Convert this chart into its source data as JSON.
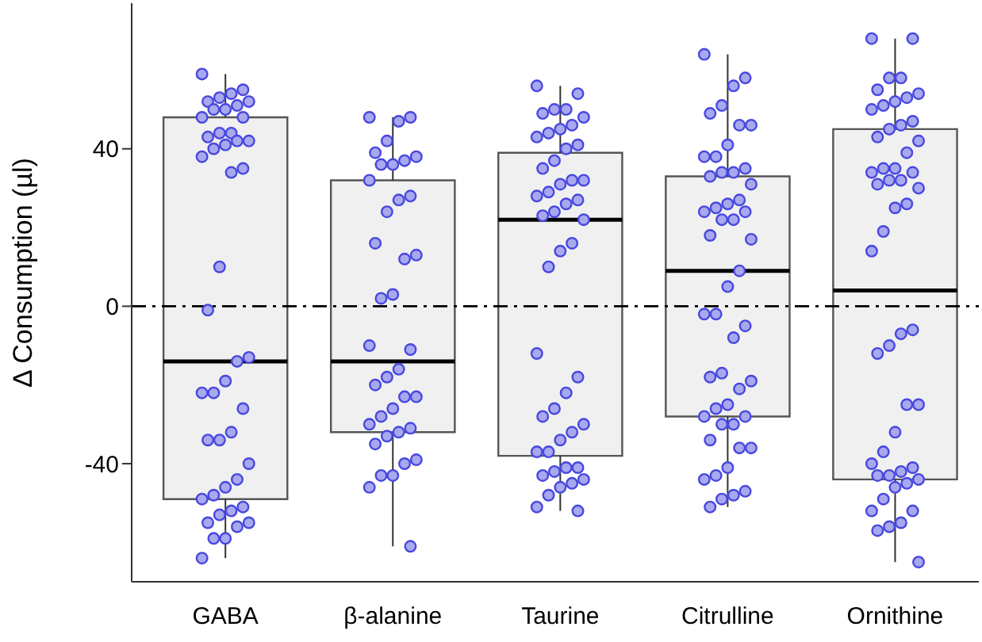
{
  "chart_data": {
    "type": "box",
    "ylabel": "Δ Consumption (µl)",
    "categories": [
      "GABA",
      "β-alanine",
      "Taurine",
      "Citrulline",
      "Ornithine"
    ],
    "boxes": [
      {
        "low": -64,
        "q1": -49,
        "median": -14,
        "q3": 48,
        "high": 59
      },
      {
        "low": -61,
        "q1": -32,
        "median": -14,
        "q3": 32,
        "high": 48
      },
      {
        "low": -52,
        "q1": -38,
        "median": 22,
        "q3": 39,
        "high": 56
      },
      {
        "low": -51,
        "q1": -28,
        "median": 9,
        "q3": 33,
        "high": 64
      },
      {
        "low": -65,
        "q1": -44,
        "median": 4,
        "q3": 45,
        "high": 68
      }
    ],
    "series": [
      {
        "type": "scatter",
        "color": "#4848e0",
        "x": [
          "GABA",
          "GABA",
          "GABA",
          "GABA",
          "GABA",
          "GABA",
          "GABA",
          "GABA",
          "GABA",
          "GABA",
          "GABA",
          "GABA",
          "GABA",
          "GABA",
          "GABA",
          "GABA",
          "GABA",
          "GABA",
          "GABA",
          "GABA",
          "GABA",
          "GABA",
          "GABA",
          "GABA",
          "GABA",
          "GABA",
          "GABA",
          "GABA",
          "GABA",
          "GABA",
          "GABA",
          "GABA",
          "GABA",
          "GABA",
          "GABA",
          "GABA",
          "GABA",
          "GABA",
          "GABA",
          "GABA",
          "GABA",
          "GABA",
          "GABA",
          "GABA",
          "GABA",
          "GABA"
        ],
        "values": [
          59,
          55,
          54,
          53,
          52,
          52,
          51,
          50,
          50,
          48,
          48,
          44,
          44,
          43,
          42,
          42,
          41,
          40,
          38,
          35,
          34,
          10,
          -1,
          -13,
          -14,
          -19,
          -22,
          -22,
          -26,
          -32,
          -34,
          -34,
          -40,
          -44,
          -46,
          -48,
          -49,
          -51,
          -52,
          -53,
          -55,
          -55,
          -56,
          -59,
          -59,
          -64
        ]
      },
      {
        "type": "scatter",
        "color": "#4848e0",
        "x": [
          "β-alanine",
          "β-alanine",
          "β-alanine",
          "β-alanine",
          "β-alanine",
          "β-alanine",
          "β-alanine",
          "β-alanine",
          "β-alanine",
          "β-alanine",
          "β-alanine",
          "β-alanine",
          "β-alanine",
          "β-alanine",
          "β-alanine",
          "β-alanine",
          "β-alanine",
          "β-alanine",
          "β-alanine",
          "β-alanine",
          "β-alanine",
          "β-alanine",
          "β-alanine",
          "β-alanine",
          "β-alanine",
          "β-alanine",
          "β-alanine",
          "β-alanine",
          "β-alanine",
          "β-alanine",
          "β-alanine",
          "β-alanine",
          "β-alanine",
          "β-alanine",
          "β-alanine",
          "β-alanine",
          "β-alanine",
          "β-alanine"
        ],
        "values": [
          48,
          48,
          47,
          42,
          39,
          38,
          37,
          36,
          36,
          32,
          28,
          27,
          24,
          16,
          13,
          12,
          3,
          2,
          -10,
          -11,
          -16,
          -18,
          -20,
          -23,
          -23,
          -26,
          -28,
          -30,
          -31,
          -32,
          -33,
          -35,
          -39,
          -40,
          -43,
          -43,
          -46,
          -61
        ]
      },
      {
        "type": "scatter",
        "color": "#4848e0",
        "x": [
          "Taurine",
          "Taurine",
          "Taurine",
          "Taurine",
          "Taurine",
          "Taurine",
          "Taurine",
          "Taurine",
          "Taurine",
          "Taurine",
          "Taurine",
          "Taurine",
          "Taurine",
          "Taurine",
          "Taurine",
          "Taurine",
          "Taurine",
          "Taurine",
          "Taurine",
          "Taurine",
          "Taurine",
          "Taurine",
          "Taurine",
          "Taurine",
          "Taurine",
          "Taurine",
          "Taurine",
          "Taurine",
          "Taurine",
          "Taurine",
          "Taurine",
          "Taurine",
          "Taurine",
          "Taurine",
          "Taurine",
          "Taurine",
          "Taurine",
          "Taurine",
          "Taurine",
          "Taurine",
          "Taurine",
          "Taurine",
          "Taurine",
          "Taurine",
          "Taurine",
          "Taurine",
          "Taurine"
        ],
        "values": [
          56,
          54,
          50,
          50,
          49,
          48,
          46,
          45,
          44,
          43,
          41,
          40,
          37,
          35,
          32,
          32,
          31,
          29,
          28,
          27,
          26,
          24,
          23,
          22,
          16,
          14,
          10,
          -12,
          -18,
          -22,
          -26,
          -28,
          -30,
          -32,
          -34,
          -37,
          -37,
          -41,
          -41,
          -42,
          -43,
          -44,
          -45,
          -46,
          -48,
          -51,
          -52
        ]
      },
      {
        "type": "scatter",
        "color": "#4848e0",
        "x": [
          "Citrulline",
          "Citrulline",
          "Citrulline",
          "Citrulline",
          "Citrulline",
          "Citrulline",
          "Citrulline",
          "Citrulline",
          "Citrulline",
          "Citrulline",
          "Citrulline",
          "Citrulline",
          "Citrulline",
          "Citrulline",
          "Citrulline",
          "Citrulline",
          "Citrulline",
          "Citrulline",
          "Citrulline",
          "Citrulline",
          "Citrulline",
          "Citrulline",
          "Citrulline",
          "Citrulline",
          "Citrulline",
          "Citrulline",
          "Citrulline",
          "Citrulline",
          "Citrulline",
          "Citrulline",
          "Citrulline",
          "Citrulline",
          "Citrulline",
          "Citrulline",
          "Citrulline",
          "Citrulline",
          "Citrulline",
          "Citrulline",
          "Citrulline",
          "Citrulline",
          "Citrulline",
          "Citrulline",
          "Citrulline",
          "Citrulline",
          "Citrulline",
          "Citrulline",
          "Citrulline",
          "Citrulline",
          "Citrulline",
          "Citrulline"
        ],
        "values": [
          64,
          58,
          56,
          51,
          49,
          46,
          46,
          41,
          38,
          38,
          35,
          34,
          34,
          33,
          31,
          27,
          26,
          25,
          24,
          24,
          22,
          22,
          18,
          17,
          9,
          5,
          -2,
          -2,
          -5,
          -8,
          -17,
          -18,
          -19,
          -21,
          -25,
          -26,
          -28,
          -28,
          -30,
          -30,
          -34,
          -36,
          -36,
          -41,
          -43,
          -44,
          -47,
          -48,
          -49,
          -51
        ]
      },
      {
        "type": "scatter",
        "color": "#4848e0",
        "x": [
          "Ornithine",
          "Ornithine",
          "Ornithine",
          "Ornithine",
          "Ornithine",
          "Ornithine",
          "Ornithine",
          "Ornithine",
          "Ornithine",
          "Ornithine",
          "Ornithine",
          "Ornithine",
          "Ornithine",
          "Ornithine",
          "Ornithine",
          "Ornithine",
          "Ornithine",
          "Ornithine",
          "Ornithine",
          "Ornithine",
          "Ornithine",
          "Ornithine",
          "Ornithine",
          "Ornithine",
          "Ornithine",
          "Ornithine",
          "Ornithine",
          "Ornithine",
          "Ornithine",
          "Ornithine",
          "Ornithine",
          "Ornithine",
          "Ornithine",
          "Ornithine",
          "Ornithine",
          "Ornithine",
          "Ornithine",
          "Ornithine",
          "Ornithine",
          "Ornithine",
          "Ornithine",
          "Ornithine",
          "Ornithine",
          "Ornithine",
          "Ornithine",
          "Ornithine",
          "Ornithine",
          "Ornithine",
          "Ornithine",
          "Ornithine",
          "Ornithine"
        ],
        "values": [
          68,
          68,
          58,
          58,
          55,
          54,
          53,
          52,
          51,
          50,
          47,
          46,
          45,
          43,
          42,
          39,
          35,
          35,
          34,
          34,
          32,
          32,
          31,
          30,
          26,
          25,
          19,
          14,
          -6,
          -7,
          -10,
          -12,
          -25,
          -25,
          -32,
          -37,
          -40,
          -41,
          -42,
          -43,
          -43,
          -44,
          -45,
          -46,
          -49,
          -52,
          -52,
          -55,
          -56,
          -57,
          -65
        ]
      }
    ],
    "ylim": [
      -70,
      77
    ],
    "yticks": [
      -40,
      0,
      40
    ],
    "ref_lines": [
      {
        "axis": "y",
        "value": 0,
        "color": "#000000",
        "line_style": "dashed"
      }
    ],
    "marker": "circle"
  }
}
